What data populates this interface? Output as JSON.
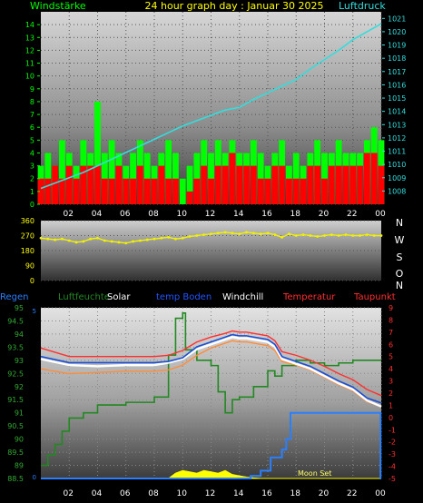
{
  "colors": {
    "wind_avg": "#00ff00",
    "wind_gust": "#ff0000",
    "pressure": "#33dddd",
    "wind_dir": "#f2f200",
    "rain": "#2a7fff",
    "humidity": "#228822",
    "solar": "#ffff00",
    "temp_ground": "#1a4fd6",
    "windchill": "#ffffff",
    "temperature": "#ff3030",
    "dewpoint": "#ff8c3a"
  },
  "chart_data": [
    {
      "type": "bar",
      "id": "wind",
      "title": "24 hour graph day : Januar 30 2025",
      "y_left_label": "Windstärke",
      "y_right_label": "Luftdruck",
      "x_ticks": [
        "02",
        "04",
        "06",
        "08",
        "10",
        "12",
        "14",
        "16",
        "18",
        "20",
        "22",
        "00"
      ],
      "x_range": [
        0,
        24
      ],
      "ylim_left": [
        0,
        15
      ],
      "y_left_ticks": [
        0,
        1,
        2,
        3,
        4,
        5,
        6,
        7,
        8,
        9,
        10,
        11,
        12,
        13,
        14
      ],
      "ylim_right": [
        1007,
        1021.5
      ],
      "y_right_ticks": [
        1008,
        1009,
        1010,
        1011,
        1012,
        1013,
        1014,
        1015,
        1016,
        1017,
        1018,
        1019,
        1020,
        1021
      ],
      "series": [
        {
          "name": "avg",
          "x": [
            0.0,
            0.5,
            1.0,
            1.5,
            2.0,
            2.5,
            3.0,
            3.5,
            4.0,
            4.5,
            5.0,
            5.5,
            6.0,
            6.5,
            7.0,
            7.5,
            8.0,
            8.5,
            9.0,
            9.5,
            10.0,
            10.5,
            11.0,
            11.5,
            12.0,
            12.5,
            13.0,
            13.5,
            14.0,
            14.5,
            15.0,
            15.5,
            16.0,
            16.5,
            17.0,
            17.5,
            18.0,
            18.5,
            19.0,
            19.5,
            20.0,
            20.5,
            21.0,
            21.5,
            22.0,
            22.5,
            23.0,
            23.5,
            24.0
          ],
          "values": [
            3,
            4,
            3,
            5,
            4,
            3,
            5,
            4,
            8,
            4,
            5,
            4,
            3,
            4,
            5,
            4,
            3,
            4,
            5,
            4,
            2,
            3,
            4,
            5,
            4,
            5,
            4,
            5,
            4,
            4,
            5,
            4,
            3,
            4,
            5,
            3,
            4,
            3,
            4,
            5,
            4,
            4,
            5,
            4,
            4,
            4,
            5,
            6,
            5
          ],
          "color_key": "wind_avg"
        },
        {
          "name": "gust",
          "x": [
            0.0,
            0.5,
            1.0,
            1.5,
            2.0,
            2.5,
            3.0,
            3.5,
            4.0,
            4.5,
            5.0,
            5.5,
            6.0,
            6.5,
            7.0,
            7.5,
            8.0,
            8.5,
            9.0,
            9.5,
            10.0,
            10.5,
            11.0,
            11.5,
            12.0,
            12.5,
            13.0,
            13.5,
            14.0,
            14.5,
            15.0,
            15.5,
            16.0,
            16.5,
            17.0,
            17.5,
            18.0,
            18.5,
            19.0,
            19.5,
            20.0,
            20.5,
            21.0,
            21.5,
            22.0,
            22.5,
            23.0,
            23.5,
            24.0
          ],
          "values": [
            2,
            2,
            3,
            2,
            3,
            2,
            3,
            3,
            3,
            2,
            2,
            3,
            2,
            2,
            3,
            2,
            2,
            3,
            2,
            2,
            0,
            1,
            2,
            3,
            2,
            3,
            3,
            4,
            3,
            3,
            3,
            2,
            2,
            3,
            3,
            2,
            2,
            2,
            3,
            3,
            2,
            3,
            3,
            3,
            3,
            3,
            4,
            4,
            3
          ],
          "color_key": "wind_gust"
        },
        {
          "name": "pressure",
          "x": [
            0,
            1,
            2,
            3,
            4,
            5,
            6,
            7,
            8,
            9,
            10,
            11,
            12,
            13,
            14,
            15,
            16,
            17,
            18,
            19,
            20,
            21,
            22,
            23,
            24
          ],
          "values": [
            1008.2,
            1008.6,
            1009.0,
            1009.4,
            1009.9,
            1010.4,
            1010.9,
            1011.4,
            1011.9,
            1012.4,
            1012.9,
            1013.3,
            1013.7,
            1014.1,
            1014.3,
            1014.9,
            1015.4,
            1015.9,
            1016.4,
            1017.2,
            1017.9,
            1018.6,
            1019.4,
            1020.0,
            1020.6
          ],
          "axis": "right",
          "color_key": "pressure"
        }
      ]
    },
    {
      "type": "scatter",
      "id": "winddir",
      "x_range": [
        0,
        24
      ],
      "ylim": [
        0,
        360
      ],
      "y_ticks": [
        0,
        90,
        180,
        270,
        360
      ],
      "compass_labels": [
        "N",
        "W",
        "S",
        "O",
        "N"
      ],
      "series": [
        {
          "name": "direction",
          "x": [
            0,
            0.5,
            1,
            1.5,
            2,
            2.5,
            3,
            3.5,
            4,
            4.5,
            5,
            5.5,
            6,
            6.5,
            7,
            7.5,
            8,
            8.5,
            9,
            9.5,
            10,
            10.5,
            11,
            11.5,
            12,
            12.5,
            13,
            13.5,
            14,
            14.5,
            15,
            15.5,
            16,
            16.5,
            17,
            17.5,
            18,
            18.5,
            19,
            19.5,
            20,
            20.5,
            21,
            21.5,
            22,
            22.5,
            23,
            23.5,
            24
          ],
          "values": [
            255,
            250,
            245,
            250,
            240,
            230,
            235,
            250,
            255,
            240,
            235,
            230,
            225,
            235,
            240,
            245,
            250,
            255,
            260,
            250,
            255,
            265,
            270,
            275,
            280,
            285,
            290,
            285,
            280,
            290,
            285,
            280,
            285,
            275,
            260,
            280,
            270,
            275,
            270,
            265,
            270,
            275,
            270,
            275,
            270,
            270,
            275,
            270,
            270
          ],
          "color_key": "wind_dir"
        }
      ]
    },
    {
      "type": "line",
      "id": "temp",
      "legend": [
        "Regen",
        "Luftfeuchte",
        "Solar",
        "temp Boden",
        "Windchill",
        "Temperatur",
        "Taupunkt"
      ],
      "x_ticks": [
        "02",
        "04",
        "06",
        "08",
        "10",
        "12",
        "14",
        "16",
        "18",
        "20",
        "22",
        "00"
      ],
      "x_range": [
        0,
        24
      ],
      "ylim_left": [
        88.5,
        95
      ],
      "y_left_ticks": [
        88.5,
        89,
        89.5,
        90,
        90.5,
        91,
        91.5,
        92,
        92.5,
        93,
        93.5,
        94,
        94.5,
        95
      ],
      "ylim_right": [
        -5,
        9
      ],
      "y_right_ticks": [
        -5,
        -4,
        -3,
        -2,
        -1,
        0,
        1,
        2,
        3,
        4,
        5,
        6,
        7,
        8,
        9
      ],
      "left_small_ticks": [
        0,
        5
      ],
      "annotation": "Moon Set",
      "series": [
        {
          "name": "Temperatur",
          "x": [
            0,
            2,
            4,
            6,
            8,
            9,
            10,
            11,
            12,
            13,
            13.5,
            14,
            14.5,
            15,
            16,
            16.5,
            17,
            18,
            19,
            20,
            21,
            22,
            23,
            24
          ],
          "values": [
            5.7,
            5.0,
            5.0,
            5.0,
            5.0,
            5.1,
            5.5,
            6.2,
            6.6,
            6.9,
            7.1,
            7.0,
            7.0,
            6.9,
            6.7,
            6.3,
            5.4,
            5.1,
            4.7,
            4.2,
            3.6,
            3.1,
            2.3,
            1.8
          ],
          "axis": "right",
          "color_key": "temperature"
        },
        {
          "name": "Windchill",
          "x": [
            0,
            2,
            4,
            6,
            8,
            9,
            10,
            11,
            12,
            13,
            13.5,
            14,
            14.5,
            15,
            16,
            16.5,
            17,
            18,
            19,
            20,
            21,
            22,
            23,
            24
          ],
          "values": [
            4.8,
            4.3,
            4.2,
            4.3,
            4.3,
            4.5,
            4.8,
            5.6,
            6.0,
            6.4,
            6.6,
            6.5,
            6.5,
            6.4,
            6.2,
            5.8,
            4.8,
            4.4,
            4.0,
            3.4,
            2.8,
            2.3,
            1.4,
            0.9
          ],
          "axis": "right",
          "color_key": "windchill"
        },
        {
          "name": "temp Boden",
          "x": [
            0,
            2,
            4,
            6,
            8,
            9,
            10,
            11,
            12,
            13,
            13.5,
            14,
            14.5,
            15,
            16,
            16.5,
            17,
            18,
            19,
            20,
            21,
            22,
            23,
            24
          ],
          "values": [
            5.0,
            4.5,
            4.5,
            4.5,
            4.5,
            4.6,
            4.9,
            5.8,
            6.2,
            6.6,
            6.8,
            6.7,
            6.7,
            6.6,
            6.4,
            6.0,
            5.0,
            4.6,
            4.2,
            3.6,
            3.0,
            2.5,
            1.6,
            1.2
          ],
          "axis": "right",
          "color_key": "temp_ground"
        },
        {
          "name": "Taupunkt",
          "x": [
            0,
            2,
            4,
            6,
            8,
            9,
            10,
            11,
            12,
            13,
            13.5,
            14,
            14.5,
            15,
            16,
            16.5,
            17,
            18,
            19,
            20,
            21,
            22,
            23,
            24
          ],
          "values": [
            4.0,
            3.6,
            3.7,
            3.8,
            3.8,
            3.9,
            4.3,
            5.1,
            5.7,
            6.1,
            6.3,
            6.2,
            6.2,
            6.1,
            5.9,
            5.5,
            4.6,
            4.3,
            3.9,
            3.3,
            2.7,
            2.2,
            1.3,
            0.9
          ],
          "axis": "right",
          "color_key": "dewpoint"
        },
        {
          "name": "Luftfeuchte",
          "x": [
            0,
            0.5,
            1,
            1.5,
            2,
            3,
            4,
            6,
            8,
            9,
            9.5,
            10,
            10.2,
            11,
            12,
            12.5,
            13,
            13.5,
            14,
            15,
            16,
            16.5,
            17,
            18,
            19,
            20,
            21,
            22,
            23,
            24
          ],
          "values": [
            89.0,
            89.4,
            89.8,
            90.3,
            90.8,
            91.0,
            91.3,
            91.4,
            91.6,
            93.2,
            94.6,
            94.8,
            93.4,
            93.0,
            92.8,
            91.8,
            91.0,
            91.5,
            91.6,
            92.0,
            92.6,
            92.4,
            92.8,
            93.0,
            92.9,
            92.8,
            92.9,
            93.0,
            93.0,
            93.0
          ],
          "color_key": "humidity"
        },
        {
          "name": "Regen",
          "x": [
            0,
            14,
            14.8,
            15.5,
            16.2,
            17,
            17.3,
            17.6,
            18,
            20,
            22,
            23.9,
            23.95,
            24
          ],
          "values": [
            88.5,
            88.5,
            88.6,
            88.8,
            89.3,
            89.6,
            90.0,
            91.0,
            91.0,
            91.0,
            91.0,
            91.0,
            88.5,
            88.5
          ],
          "color_key": "rain"
        },
        {
          "name": "Solar",
          "x": [
            0,
            9,
            9.5,
            10,
            10.5,
            11,
            11.5,
            12,
            12.5,
            13,
            13.5,
            14,
            14.5,
            15,
            15.5,
            16,
            17,
            24
          ],
          "values": [
            88.5,
            88.5,
            88.7,
            88.8,
            88.75,
            88.7,
            88.8,
            88.75,
            88.7,
            88.8,
            88.65,
            88.6,
            88.55,
            88.52,
            88.5,
            88.5,
            88.5,
            88.5
          ],
          "color_key": "solar"
        }
      ]
    }
  ]
}
